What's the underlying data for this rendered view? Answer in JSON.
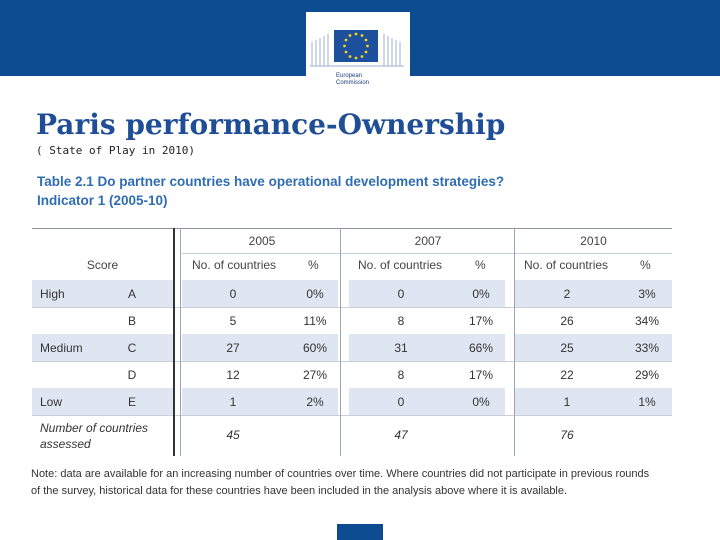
{
  "header": {
    "logo_line1": "European",
    "logo_line2": "Commission",
    "brand_color": "#0e4c92",
    "flag_icon": "eu-flag-icon"
  },
  "slide": {
    "title": "Paris performance-Ownership",
    "subtitle": "( State of Play in 2010)"
  },
  "table": {
    "caption_line1": "Table 2.1  Do partner countries have operational development strategies?",
    "caption_line2": "Indicator 1 (2005-10)",
    "years": [
      "2005",
      "2007",
      "2010"
    ],
    "score_header": "Score",
    "count_header": "No. of countries",
    "pct_header": "%",
    "rows": [
      {
        "level": "High",
        "grade": "A",
        "c2005": "0",
        "p2005": "0%",
        "c2007": "0",
        "p2007": "0%",
        "c2010": "2",
        "p2010": "3%"
      },
      {
        "level": "",
        "grade": "B",
        "c2005": "5",
        "p2005": "11%",
        "c2007": "8",
        "p2007": "17%",
        "c2010": "26",
        "p2010": "34%"
      },
      {
        "level": "Medium",
        "grade": "C",
        "c2005": "27",
        "p2005": "60%",
        "c2007": "31",
        "p2007": "66%",
        "c2010": "25",
        "p2010": "33%"
      },
      {
        "level": "",
        "grade": "D",
        "c2005": "12",
        "p2005": "27%",
        "c2007": "8",
        "p2007": "17%",
        "c2010": "22",
        "p2010": "29%"
      },
      {
        "level": "Low",
        "grade": "E",
        "c2005": "1",
        "p2005": "2%",
        "c2007": "0",
        "p2007": "0%",
        "c2010": "1",
        "p2010": "1%"
      }
    ],
    "total_label_line1": "Number of countries",
    "total_label_line2": "assessed",
    "totals": [
      "45",
      "47",
      "76"
    ]
  },
  "note": {
    "line1": "Note: data are available for an increasing number of countries over time. Where countries did not participate in previous rounds",
    "line2": "of the survey, historical data for these countries have been included in the analysis above where it is available."
  }
}
